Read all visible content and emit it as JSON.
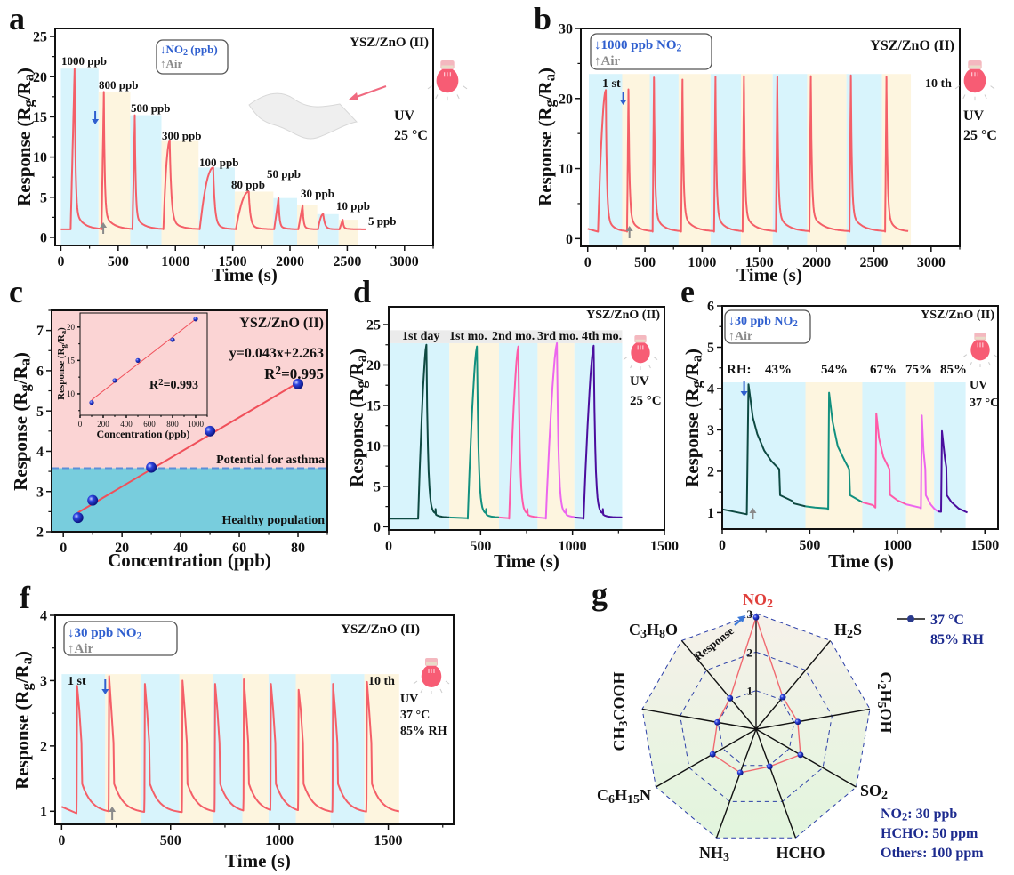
{
  "panel_labels": [
    "a",
    "b",
    "c",
    "d",
    "e",
    "f",
    "g"
  ],
  "colors": {
    "band_blue": "#d8f4fc",
    "band_yellow": "#fdf5df",
    "response_line": "#f45f68",
    "gas_arrow": "#2f5fcf",
    "air_arrow": "#8a8a8a",
    "asthma_zone": "#fbd4d4",
    "healthy_zone": "#78cddd",
    "threshold_line": "#5b8fd8",
    "marker": "#1b2ec8",
    "navy_text": "#1c2a8e",
    "no2_label": "#e0403c"
  },
  "chart_data": [
    {
      "panel": "a",
      "type": "line",
      "sample_label": "YSZ/ZnO (II)",
      "xlabel": "Time (s)",
      "ylabel": "Response (R_{g}/R_{a})",
      "xlim": [
        -50,
        3250
      ],
      "ylim": [
        -1,
        26
      ],
      "xticks": [
        0,
        500,
        1000,
        1500,
        2000,
        2500,
        3000
      ],
      "yticks": [
        0,
        5,
        10,
        15,
        20,
        25
      ],
      "legend": [
        "↓NO_{2} (ppb)",
        "↑Air"
      ],
      "conditions": [
        "UV",
        "25 °C"
      ],
      "baseline": 1.0,
      "cycles": [
        {
          "label": "1000 ppb",
          "band": [
            0,
            329
          ],
          "on": 85,
          "peak_time": 120,
          "response": 21.0
        },
        {
          "label": "800 ppb",
          "band": [
            329,
            606
          ],
          "on": 355,
          "peak_time": 375,
          "response": 18.1
        },
        {
          "label": "500 ppb",
          "band": [
            606,
            878
          ],
          "on": 625,
          "peak_time": 645,
          "response": 15.2
        },
        {
          "label": "300 ppb",
          "band": [
            878,
            1202
          ],
          "on": 895,
          "peak_time": 950,
          "response": 12.0
        },
        {
          "label": "100 ppb",
          "band": [
            1202,
            1518
          ],
          "on": 1212,
          "peak_time": 1330,
          "response": 8.7
        },
        {
          "label": "80 ppb",
          "band": [
            1518,
            1855
          ],
          "on": 1528,
          "peak_time": 1640,
          "response": 5.7
        },
        {
          "label": "50 ppb",
          "band": [
            1855,
            2062
          ],
          "on": 1862,
          "peak_time": 1900,
          "response": 4.9
        },
        {
          "label": "30 ppb",
          "band": [
            2062,
            2238
          ],
          "on": 2072,
          "peak_time": 2110,
          "response": 4.0
        },
        {
          "label": "10 ppb",
          "band": [
            2238,
            2425
          ],
          "on": 2245,
          "peak_time": 2290,
          "response": 2.9
        },
        {
          "label": "5 ppb",
          "band": [
            2425,
            2596
          ],
          "on": 2432,
          "peak_time": 2460,
          "response": 2.2
        }
      ]
    },
    {
      "panel": "b",
      "type": "line",
      "sample_label": "YSZ/ZnO (II)",
      "xlabel": "Time (s)",
      "ylabel": "Response (R_{g}/R_{a})",
      "xlim": [
        -60,
        3250
      ],
      "ylim": [
        -1.1,
        30
      ],
      "xticks": [
        0,
        500,
        1000,
        1500,
        2000,
        2500,
        3000
      ],
      "yticks": [
        0,
        10,
        20,
        30
      ],
      "legend": [
        "↓1000 ppb NO_{2}",
        "↑Air"
      ],
      "conditions": [
        "UV",
        "25 °C"
      ],
      "cycle_labels": [
        "1 st",
        "10 th"
      ],
      "band_top": 23.5,
      "band_edges": [
        10,
        301,
        542,
        794,
        1074,
        1339,
        1616,
        1917,
        2260,
        2571,
        2823
      ],
      "peaks": [
        {
          "t": 158,
          "response": 21.2
        },
        {
          "t": 356,
          "response": 21.3
        },
        {
          "t": 579,
          "response": 23.0
        },
        {
          "t": 828,
          "response": 22.7
        },
        {
          "t": 1116,
          "response": 23.1
        },
        {
          "t": 1365,
          "response": 23.2
        },
        {
          "t": 1656,
          "response": 23.1
        },
        {
          "t": 1949,
          "response": 23.2
        },
        {
          "t": 2299,
          "response": 23.3
        },
        {
          "t": 2610,
          "response": 23.1
        }
      ]
    },
    {
      "panel": "c",
      "type": "scatter",
      "sample_label": "YSZ/ZnO (II)",
      "xlabel": "Concentration (ppb)",
      "ylabel": "Response (R_{g}/R_{a})",
      "xlim": [
        -4,
        90
      ],
      "ylim": [
        2,
        7.5
      ],
      "xticks": [
        0,
        20,
        40,
        60,
        80
      ],
      "yticks": [
        2,
        3,
        4,
        5,
        6,
        7
      ],
      "points": [
        {
          "x": 5,
          "y": 2.35
        },
        {
          "x": 10,
          "y": 2.78
        },
        {
          "x": 30,
          "y": 3.6
        },
        {
          "x": 50,
          "y": 4.5
        },
        {
          "x": 80,
          "y": 5.67
        }
      ],
      "fit": {
        "slope": 0.043,
        "intercept": 2.263,
        "equation": "y=0.043x+2.263",
        "r2_label": "R^{2}=0.995"
      },
      "threshold": 3.58,
      "zones": {
        "upper": "Potential for asthma",
        "lower": "Healthy population"
      },
      "inset": {
        "type": "scatter",
        "xlabel": "Concentration (ppb)",
        "ylabel": "Response (R_{g}/R_{a})",
        "xlim": [
          0,
          1100
        ],
        "ylim": [
          6.8,
          22.1
        ],
        "xticks": [
          0,
          200,
          400,
          600,
          800,
          1000
        ],
        "yticks": [
          10,
          15,
          20
        ],
        "points": [
          {
            "x": 100,
            "y": 8.7
          },
          {
            "x": 300,
            "y": 12.0
          },
          {
            "x": 500,
            "y": 15.0
          },
          {
            "x": 800,
            "y": 18.1
          },
          {
            "x": 1000,
            "y": 21.2
          }
        ],
        "r2_label": "R^{2}=0.993"
      }
    },
    {
      "panel": "d",
      "type": "line",
      "sample_label": "YSZ/ZnO (II)",
      "xlabel": "Time (s)",
      "ylabel": "Response (R_{g}/R_{a})",
      "xlim": [
        0,
        1500
      ],
      "ylim": [
        -0.4,
        27.2
      ],
      "xticks": [
        0,
        500,
        1000,
        1500
      ],
      "yticks": [
        0,
        5,
        10,
        15,
        20,
        25
      ],
      "conditions": [
        "UV",
        "25 °C"
      ],
      "band_top": 22.7,
      "header_top": 24.3,
      "series": [
        {
          "name": "1st day",
          "band": [
            0,
            330
          ],
          "on": 160,
          "peak_time": 205,
          "response": 22.5,
          "color": "#0e4a42"
        },
        {
          "name": "1st mo.",
          "band": [
            330,
            600
          ],
          "on": 430,
          "peak_time": 480,
          "response": 22.3,
          "color": "#12907f"
        },
        {
          "name": "2nd mo.",
          "band": [
            600,
            810
          ],
          "on": 655,
          "peak_time": 705,
          "response": 22.3,
          "color": "#ff5aa8"
        },
        {
          "name": "3rd mo.",
          "band": [
            810,
            1010
          ],
          "on": 855,
          "peak_time": 915,
          "response": 22.7,
          "color": "#ec66ee"
        },
        {
          "name": "4th mo.",
          "band": [
            1010,
            1270
          ],
          "on": 1060,
          "peak_time": 1115,
          "response": 22.4,
          "color": "#4b0e9e"
        }
      ]
    },
    {
      "panel": "e",
      "type": "line",
      "sample_label": "YSZ/ZnO (II)",
      "xlabel": "Time (s)",
      "ylabel": "Response (R_{g}/R_{a})",
      "xlim": [
        0,
        1575
      ],
      "ylim": [
        0.6,
        6
      ],
      "xticks": [
        0,
        500,
        1000,
        1500
      ],
      "yticks": [
        1,
        2,
        3,
        4,
        5,
        6
      ],
      "legend": [
        "↓30 ppb NO_{2}",
        "↑Air"
      ],
      "conditions": [
        "UV",
        "37 °C"
      ],
      "rh_prefix": "RH:",
      "band_top": 4.15,
      "series": [
        {
          "name": "43%",
          "band": [
            0,
            475
          ],
          "color": "#0e4a42",
          "points": [
            [
              0,
              1.08
            ],
            [
              140,
              0.96
            ],
            [
              150,
              4.1
            ],
            [
              175,
              3.3
            ],
            [
              200,
              2.9
            ],
            [
              240,
              2.5
            ],
            [
              280,
              2.25
            ],
            [
              325,
              2.05
            ],
            [
              330,
              1.42
            ],
            [
              380,
              1.32
            ],
            [
              400,
              1.28
            ],
            [
              410,
              1.22
            ],
            [
              475,
              1.15
            ]
          ]
        },
        {
          "name": "54%",
          "band": [
            475,
            800
          ],
          "color": "#12907f",
          "points": [
            [
              475,
              1.15
            ],
            [
              530,
              1.12
            ],
            [
              600,
              1.1
            ],
            [
              605,
              1.07
            ],
            [
              610,
              3.9
            ],
            [
              630,
              3.2
            ],
            [
              660,
              2.6
            ],
            [
              700,
              2.25
            ],
            [
              725,
              2.05
            ],
            [
              730,
              1.42
            ],
            [
              780,
              1.3
            ],
            [
              800,
              1.25
            ]
          ]
        },
        {
          "name": "67%",
          "band": [
            800,
            1050
          ],
          "color": "#ff5aa8",
          "points": [
            [
              800,
              1.25
            ],
            [
              860,
              1.18
            ],
            [
              875,
              1.12
            ],
            [
              880,
              3.4
            ],
            [
              895,
              2.8
            ],
            [
              920,
              2.35
            ],
            [
              955,
              2.05
            ],
            [
              958,
              1.43
            ],
            [
              1000,
              1.3
            ],
            [
              1050,
              1.2
            ]
          ]
        },
        {
          "name": "75%",
          "band": [
            1050,
            1210
          ],
          "color": "#ec66ee",
          "points": [
            [
              1050,
              1.2
            ],
            [
              1130,
              1.12
            ],
            [
              1135,
              1.1
            ],
            [
              1140,
              3.35
            ],
            [
              1150,
              2.5
            ],
            [
              1160,
              2.05
            ],
            [
              1163,
              1.42
            ],
            [
              1190,
              1.2
            ],
            [
              1210,
              1.1
            ],
            [
              1230,
              1.03
            ]
          ]
        },
        {
          "name": "85%",
          "band": [
            1210,
            1390
          ],
          "color": "#4b0e9e",
          "points": [
            [
              1230,
              1.03
            ],
            [
              1250,
              1.02
            ],
            [
              1255,
              2.97
            ],
            [
              1272,
              2.3
            ],
            [
              1280,
              2.1
            ],
            [
              1283,
              1.42
            ],
            [
              1310,
              1.25
            ],
            [
              1350,
              1.1
            ],
            [
              1400,
              1.0
            ]
          ]
        }
      ]
    },
    {
      "panel": "f",
      "type": "line",
      "sample_label": "YSZ/ZnO (II)",
      "xlabel": "Time (s)",
      "ylabel": "Response (R_{g}/R_{a})",
      "xlim": [
        -30,
        1800
      ],
      "ylim": [
        0.8,
        4
      ],
      "xticks": [
        0,
        500,
        1000,
        1500
      ],
      "yticks": [
        1,
        2,
        3,
        4
      ],
      "legend": [
        "↓30 ppb NO_{2}",
        "↑Air"
      ],
      "conditions": [
        "UV",
        "37 °C",
        "85% RH"
      ],
      "cycle_labels": [
        "1 st",
        "10 th"
      ],
      "band_top": 3.1,
      "band_edges": [
        0,
        200,
        365,
        540,
        695,
        830,
        950,
        1075,
        1235,
        1390,
        1550
      ],
      "peaks": [
        {
          "t": 71,
          "response": 2.92
        },
        {
          "t": 218,
          "response": 3.07
        },
        {
          "t": 382,
          "response": 2.95
        },
        {
          "t": 555,
          "response": 3.0
        },
        {
          "t": 705,
          "response": 2.95
        },
        {
          "t": 837,
          "response": 3.02
        },
        {
          "t": 961,
          "response": 2.95
        },
        {
          "t": 1088,
          "response": 2.86
        },
        {
          "t": 1246,
          "response": 2.95
        },
        {
          "t": 1402,
          "response": 2.98
        }
      ]
    },
    {
      "panel": "g",
      "type": "radar",
      "axes": [
        "NO_{2}",
        "H_{2}S",
        "C_{2}H_{5}OH",
        "SO_{2}",
        "HCHO",
        "NH_{3}",
        "C_{6}H_{15}N",
        "CH_{3}COOH",
        "C_{3}H_{8}O"
      ],
      "values": [
        2.9,
        1.08,
        1.1,
        1.33,
        1.03,
        1.2,
        1.3,
        1.02,
        1.05
      ],
      "rmax": 3,
      "rticks": [
        1,
        2,
        3
      ],
      "radial_label": "Response",
      "series_name": [
        "37 °C",
        "85% RH"
      ],
      "notes": [
        "NO_{2}: 30 ppb",
        "HCHO: 50 ppm",
        "Others: 100 ppm"
      ]
    }
  ]
}
